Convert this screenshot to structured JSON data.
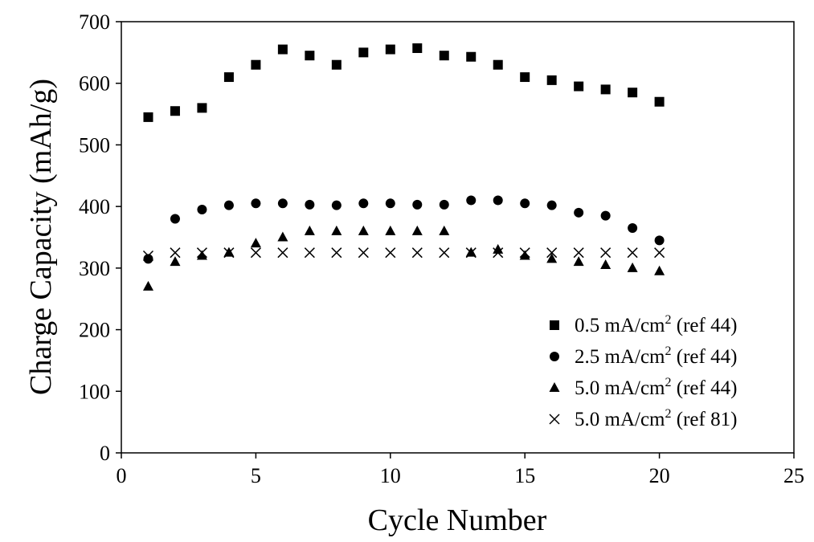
{
  "chart_data": {
    "type": "scatter",
    "title": "",
    "xlabel": "Cycle Number",
    "ylabel": "Charge Capacity (mAh/g)",
    "xlim": [
      0,
      25
    ],
    "ylim": [
      0,
      700
    ],
    "xticks": [
      0,
      5,
      10,
      15,
      20,
      25
    ],
    "yticks": [
      0,
      100,
      200,
      300,
      400,
      500,
      600,
      700
    ],
    "grid": false,
    "legend_position": "bottom-right",
    "series": [
      {
        "name": "0.5 mA/cm2 (ref 44)",
        "legend_parts": [
          "0.5 mA/cm",
          "2",
          " (ref 44)"
        ],
        "marker": "square",
        "color": "#000000",
        "x": [
          1,
          2,
          3,
          4,
          5,
          6,
          7,
          8,
          9,
          10,
          11,
          12,
          13,
          14,
          15,
          16,
          17,
          18,
          19,
          20
        ],
        "y": [
          545,
          555,
          560,
          610,
          630,
          655,
          645,
          630,
          650,
          655,
          657,
          645,
          643,
          630,
          610,
          605,
          595,
          590,
          585,
          570
        ]
      },
      {
        "name": "2.5 mA/cm2 (ref 44)",
        "legend_parts": [
          "2.5 mA/cm",
          "2",
          " (ref 44)"
        ],
        "marker": "circle",
        "color": "#000000",
        "x": [
          1,
          2,
          3,
          4,
          5,
          6,
          7,
          8,
          9,
          10,
          11,
          12,
          13,
          14,
          15,
          16,
          17,
          18,
          19,
          20
        ],
        "y": [
          315,
          380,
          395,
          402,
          405,
          405,
          403,
          402,
          405,
          405,
          403,
          403,
          410,
          410,
          405,
          402,
          390,
          385,
          365,
          345
        ]
      },
      {
        "name": "5.0 mA/cm2 (ref 44)",
        "legend_parts": [
          "5.0 mA/cm",
          "2",
          " (ref 44)"
        ],
        "marker": "triangle",
        "color": "#000000",
        "x": [
          1,
          2,
          3,
          4,
          5,
          6,
          7,
          8,
          9,
          10,
          11,
          12,
          13,
          14,
          15,
          16,
          17,
          18,
          19,
          20
        ],
        "y": [
          270,
          310,
          320,
          325,
          340,
          350,
          360,
          360,
          360,
          360,
          360,
          360,
          325,
          330,
          320,
          315,
          310,
          305,
          300,
          295
        ]
      },
      {
        "name": "5.0 mA/cm2 (ref 81)",
        "legend_parts": [
          "5.0 mA/cm",
          "2",
          " (ref 81)"
        ],
        "marker": "x",
        "color": "#000000",
        "x": [
          1,
          2,
          3,
          4,
          5,
          6,
          7,
          8,
          9,
          10,
          11,
          12,
          13,
          14,
          15,
          16,
          17,
          18,
          19,
          20
        ],
        "y": [
          320,
          325,
          325,
          325,
          325,
          325,
          325,
          325,
          325,
          325,
          325,
          325,
          325,
          325,
          325,
          325,
          325,
          325,
          325,
          325
        ]
      }
    ]
  }
}
